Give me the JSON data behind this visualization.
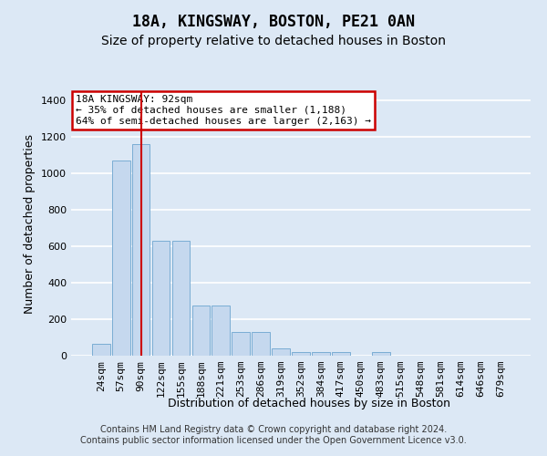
{
  "title_line1": "18A, KINGSWAY, BOSTON, PE21 0AN",
  "title_line2": "Size of property relative to detached houses in Boston",
  "xlabel": "Distribution of detached houses by size in Boston",
  "ylabel": "Number of detached properties",
  "categories": [
    "24sqm",
    "57sqm",
    "90sqm",
    "122sqm",
    "155sqm",
    "188sqm",
    "221sqm",
    "253sqm",
    "286sqm",
    "319sqm",
    "352sqm",
    "384sqm",
    "417sqm",
    "450sqm",
    "483sqm",
    "515sqm",
    "548sqm",
    "581sqm",
    "614sqm",
    "646sqm",
    "679sqm"
  ],
  "values": [
    65,
    1070,
    1160,
    630,
    630,
    275,
    275,
    130,
    130,
    40,
    20,
    20,
    20,
    0,
    20,
    0,
    0,
    0,
    0,
    0,
    0
  ],
  "bar_color": "#c5d8ee",
  "bar_edge_color": "#7aadd4",
  "highlight_bar_index": 2,
  "highlight_line_color": "#cc0000",
  "ylim": [
    0,
    1450
  ],
  "yticks": [
    0,
    200,
    400,
    600,
    800,
    1000,
    1200,
    1400
  ],
  "annotation_text": "18A KINGSWAY: 92sqm\n← 35% of detached houses are smaller (1,188)\n64% of semi-detached houses are larger (2,163) →",
  "annotation_box_edgecolor": "#cc0000",
  "footer_line1": "Contains HM Land Registry data © Crown copyright and database right 2024.",
  "footer_line2": "Contains public sector information licensed under the Open Government Licence v3.0.",
  "background_color": "#dce8f5",
  "plot_background_color": "#dce8f5",
  "grid_color": "#ffffff",
  "title_fontsize": 12,
  "subtitle_fontsize": 10,
  "axis_label_fontsize": 9,
  "tick_fontsize": 8,
  "footer_fontsize": 7,
  "annotation_fontsize": 8
}
